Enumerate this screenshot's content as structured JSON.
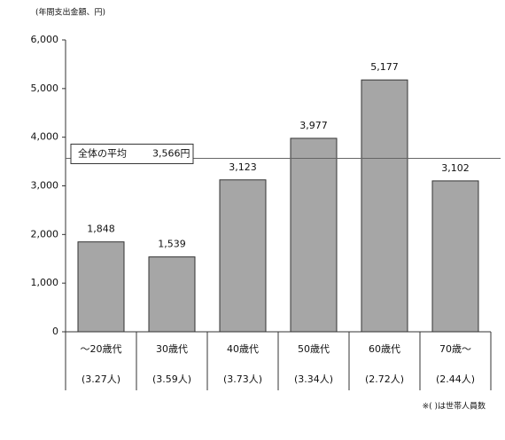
{
  "chart_data": {
    "type": "bar",
    "y_label": "(年間支出金額、円)",
    "categories": [
      "〜20歳代",
      "30歳代",
      "40歳代",
      "50歳代",
      "60歳代",
      "70歳〜"
    ],
    "household_sizes": [
      "(3.27人)",
      "(3.59人)",
      "(3.73人)",
      "(3.34人)",
      "(2.72人)",
      "(2.44人)"
    ],
    "values": [
      1848,
      1539,
      3123,
      3977,
      5177,
      3102
    ],
    "value_labels": [
      "1,848",
      "1,539",
      "3,123",
      "3,977",
      "5,177",
      "3,102"
    ],
    "color": "#a6a6a6",
    "ylim": [
      0,
      6000
    ],
    "yticks": [
      0,
      {
        "value": 1000,
        "label": "1,000"
      },
      {
        "value": 2000,
        "label": "2,000"
      },
      {
        "value": 3000,
        "label": "3,000"
      },
      {
        "value": 4000,
        "label": "4,000"
      },
      {
        "value": 5000,
        "label": "5,000"
      },
      {
        "value": 6000,
        "label": "6,000"
      }
    ],
    "average": {
      "label": "全体の平均",
      "value": 3566,
      "value_label": "3,566円"
    },
    "note": "※( )は世帯人員数"
  }
}
